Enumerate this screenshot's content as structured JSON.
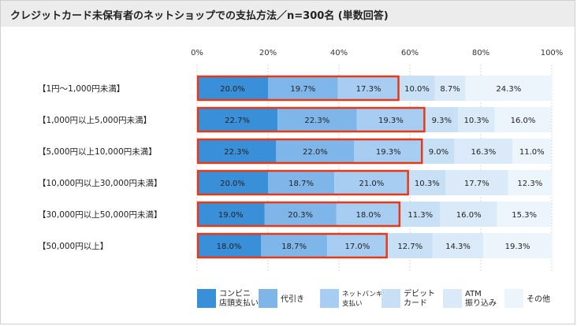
{
  "title": "クレジットカード未保有者のネットショップでの支払方法／n=300名 (単数回答)",
  "colors": {
    "convenience": "#3a8fd9",
    "cod": "#7fb6ea",
    "netbanking": "#a7cdf2",
    "debit": "#c7e0f6",
    "atm": "#dbeaf8",
    "other": "#edf5fc",
    "highlight": "#e53a17"
  },
  "chart_data": {
    "type": "bar",
    "orientation": "horizontal",
    "stacked": true,
    "xlim": [
      0,
      100
    ],
    "x_ticks": [
      "0%",
      "20%",
      "40%",
      "60%",
      "80%",
      "100%"
    ],
    "categories": [
      "【1円～1,000円未満】",
      "【1,000円以上5,000円未満】",
      "【5,000円以上10,000円未満】",
      "【10,000円以上30,000円未満】",
      "【30,000円以上50,000円未満】",
      "【50,000円以上】"
    ],
    "series": [
      {
        "name": "コンビニ店頭支払い",
        "legend": [
          "コンビニ",
          "店頭支払い"
        ],
        "color_key": "convenience",
        "values": [
          20.0,
          22.7,
          22.3,
          20.0,
          19.0,
          18.0
        ],
        "labels": [
          "20.0%",
          "22.7%",
          "22.3%",
          "20.0%",
          "19.0%",
          "18.0%"
        ]
      },
      {
        "name": "代引き",
        "legend": [
          "代引き"
        ],
        "color_key": "cod",
        "values": [
          19.7,
          22.3,
          22.0,
          18.7,
          20.3,
          18.7
        ],
        "labels": [
          "19.7%",
          "22.3%",
          "22.0%",
          "18.7%",
          "20.3%",
          "18.7%"
        ]
      },
      {
        "name": "ネットバンキング支払い",
        "legend": [
          "ネットバンキング",
          "支払い"
        ],
        "color_key": "netbanking",
        "values": [
          17.3,
          19.3,
          19.3,
          21.0,
          18.0,
          17.0
        ],
        "labels": [
          "17.3%",
          "19.3%",
          "19.3%",
          "21.0%",
          "18.0%",
          "17.0%"
        ]
      },
      {
        "name": "デビットカード",
        "legend": [
          "デビット",
          "カード"
        ],
        "color_key": "debit",
        "values": [
          10.0,
          9.3,
          9.0,
          10.3,
          11.3,
          12.7
        ],
        "labels": [
          "10.0%",
          "9.3%",
          "9.0%",
          "10.3%",
          "11.3%",
          "12.7%"
        ]
      },
      {
        "name": "ATM振り込み",
        "legend": [
          "ATM",
          "振り込み"
        ],
        "color_key": "atm",
        "values": [
          8.7,
          10.3,
          16.3,
          17.7,
          16.0,
          14.3
        ],
        "labels": [
          "8.7%",
          "10.3%",
          "16.3%",
          "17.7%",
          "16.0%",
          "14.3%"
        ]
      },
      {
        "name": "その他",
        "legend": [
          "その他"
        ],
        "color_key": "other",
        "values": [
          24.3,
          16.0,
          11.0,
          12.3,
          15.3,
          19.3
        ],
        "labels": [
          "24.3%",
          "16.0%",
          "11.0%",
          "12.3%",
          "15.3%",
          "19.3%"
        ]
      }
    ],
    "highlighted_series_count": 3,
    "grid": true,
    "legend_position": "bottom"
  }
}
